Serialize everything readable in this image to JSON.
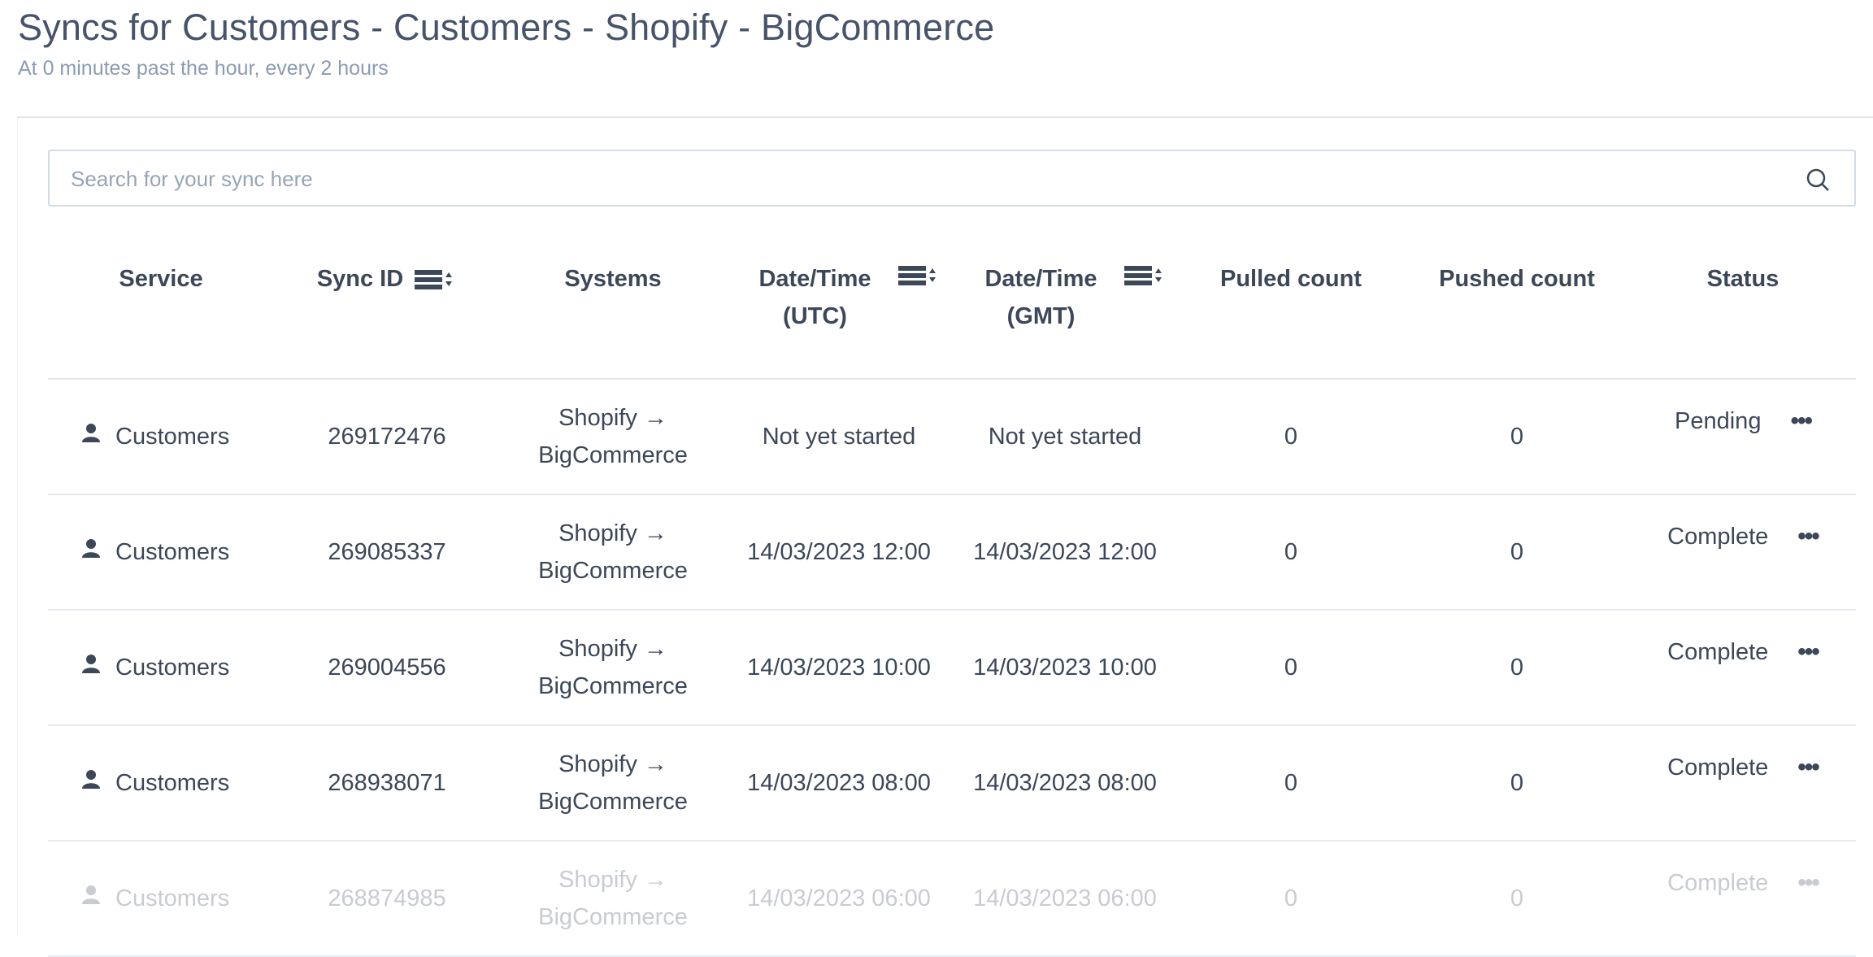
{
  "header": {
    "title": "Syncs for Customers - Customers - Shopify - BigCommerce",
    "subtitle": "At 0 minutes past the hour, every 2 hours"
  },
  "search": {
    "placeholder": "Search for your sync here",
    "value": ""
  },
  "columns": [
    {
      "label": "Service"
    },
    {
      "label": "Sync ID",
      "sortable": true
    },
    {
      "label": "Systems"
    },
    {
      "label": "Date/Time",
      "sub": "(UTC)",
      "sortable": true
    },
    {
      "label": "Date/Time",
      "sub": "(GMT)",
      "sortable": true
    },
    {
      "label": "Pulled count"
    },
    {
      "label": "Pushed count"
    },
    {
      "label": "Status"
    }
  ],
  "rows": [
    {
      "service": "Customers",
      "sync_id": "269172476",
      "from": "Shopify",
      "to": "BigCommerce",
      "utc": "Not yet started",
      "gmt": "Not yet started",
      "pulled": "0",
      "pushed": "0",
      "status": "Pending"
    },
    {
      "service": "Customers",
      "sync_id": "269085337",
      "from": "Shopify",
      "to": "BigCommerce",
      "utc": "14/03/2023 12:00",
      "gmt": "14/03/2023 12:00",
      "pulled": "0",
      "pushed": "0",
      "status": "Complete"
    },
    {
      "service": "Customers",
      "sync_id": "269004556",
      "from": "Shopify",
      "to": "BigCommerce",
      "utc": "14/03/2023 10:00",
      "gmt": "14/03/2023 10:00",
      "pulled": "0",
      "pushed": "0",
      "status": "Complete"
    },
    {
      "service": "Customers",
      "sync_id": "268938071",
      "from": "Shopify",
      "to": "BigCommerce",
      "utc": "14/03/2023 08:00",
      "gmt": "14/03/2023 08:00",
      "pulled": "0",
      "pushed": "0",
      "status": "Complete"
    },
    {
      "service": "Customers",
      "sync_id": "268874985",
      "from": "Shopify",
      "to": "BigCommerce",
      "utc": "14/03/2023 06:00",
      "gmt": "14/03/2023 06:00",
      "pulled": "0",
      "pushed": "0",
      "status": "Complete"
    }
  ],
  "colors": {
    "text": "#3c4758",
    "muted": "#8c9bb2",
    "border": "#e3e8ef"
  }
}
